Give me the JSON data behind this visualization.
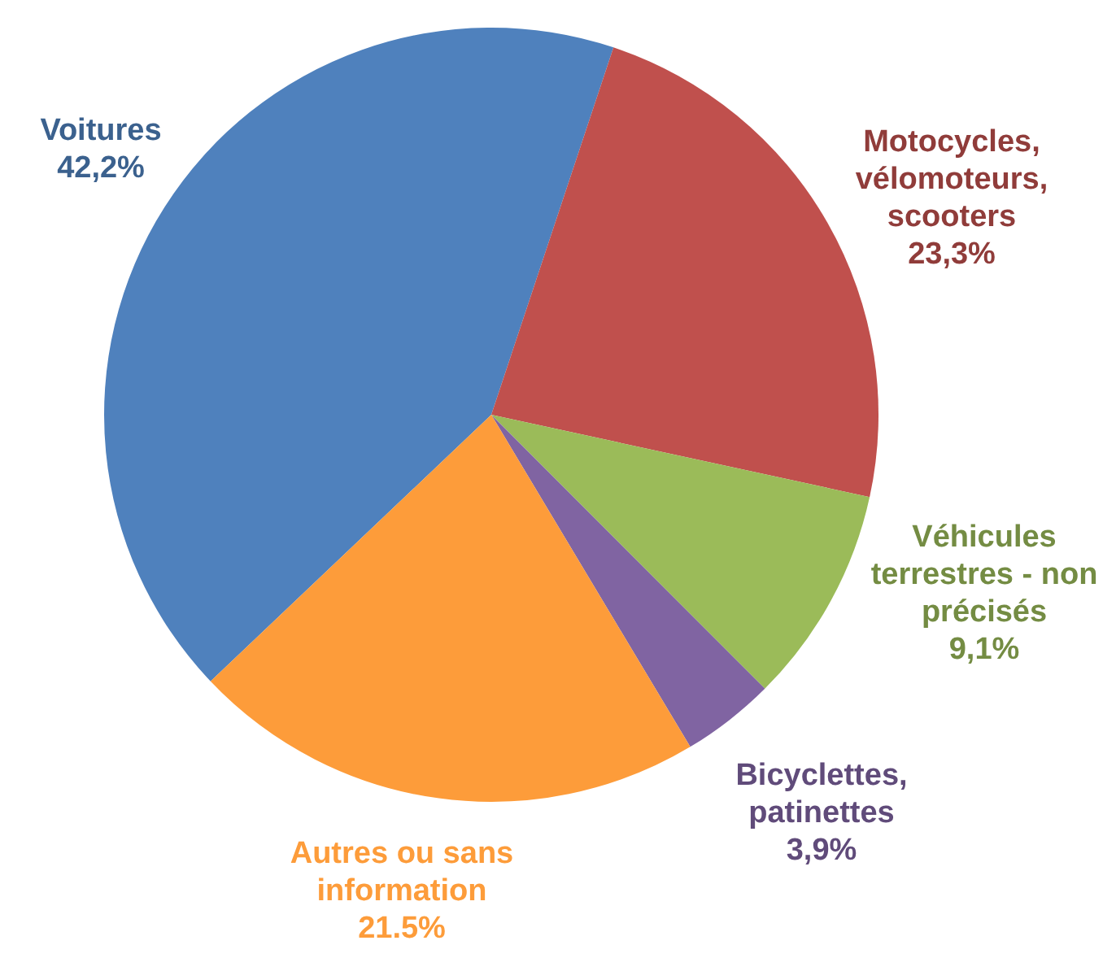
{
  "chart_data": {
    "type": "pie",
    "categories": [
      "Voitures",
      "Motocycles, vélomoteurs, scooters",
      "Véhicules terrestres - non précisés",
      "Bicyclettes, patinettes",
      "Autres ou sans information"
    ],
    "values": [
      42.2,
      23.3,
      9.1,
      3.9,
      21.5
    ],
    "value_labels": [
      "42,2%",
      "23,3%",
      "9,1%",
      "3,9%",
      "21.5%"
    ],
    "colors": [
      "#4f81bd",
      "#c0504d",
      "#9bbb59",
      "#8064a2",
      "#fd9c3a"
    ],
    "legend": false
  }
}
